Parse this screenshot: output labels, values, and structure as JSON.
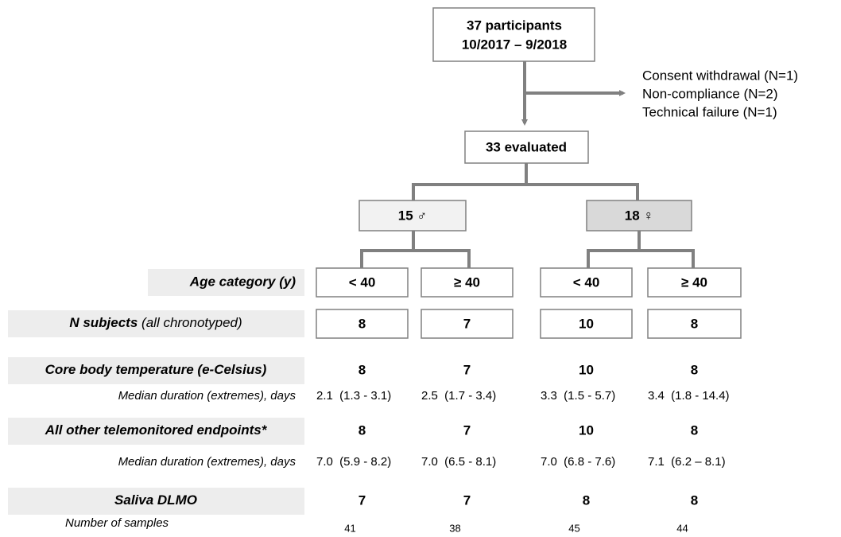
{
  "top": {
    "line1": "37 participants",
    "line2": "10/2017 – 9/2018"
  },
  "exclusions": [
    "Consent withdrawal (N=1)",
    "Non-compliance (N=2)",
    "Technical failure (N=1)"
  ],
  "evaluated": "33 evaluated",
  "groups": [
    "15 ♂",
    "18 ♀"
  ],
  "rows": [
    {
      "label": "Age category (y)",
      "cells": [
        "< 40",
        "≥ 40",
        "< 40",
        "≥ 40"
      ]
    },
    {
      "label": "N subjects",
      "note": "(all chronotyped)",
      "cells": [
        8,
        7,
        10,
        8
      ]
    },
    {
      "label": "Core body temperature (e-Celsius)",
      "cells": [
        8,
        7,
        10,
        8
      ]
    },
    {
      "label": "Median duration (extremes), days",
      "cells": [
        "2.1  (1.3 - 3.1)",
        "2.5  (1.7 - 3.4)",
        "3.3  (1.5 - 5.7)",
        "3.4  (1.8 - 14.4)"
      ]
    },
    {
      "label": "All other telemonitored endpoints*",
      "cells": [
        8,
        7,
        10,
        8
      ]
    },
    {
      "label": "Median duration (extremes), days",
      "cells": [
        "7.0  (5.9 - 8.2)",
        "7.0  (6.5 - 8.1)",
        "7.0  (6.8 - 7.6)",
        "7.1  (6.2 – 8.1)"
      ]
    },
    {
      "label": "Saliva DLMO",
      "cells": [
        7,
        7,
        8,
        8
      ]
    },
    {
      "label": "Number of samples",
      "cells": [
        41,
        38,
        45,
        44
      ]
    }
  ]
}
